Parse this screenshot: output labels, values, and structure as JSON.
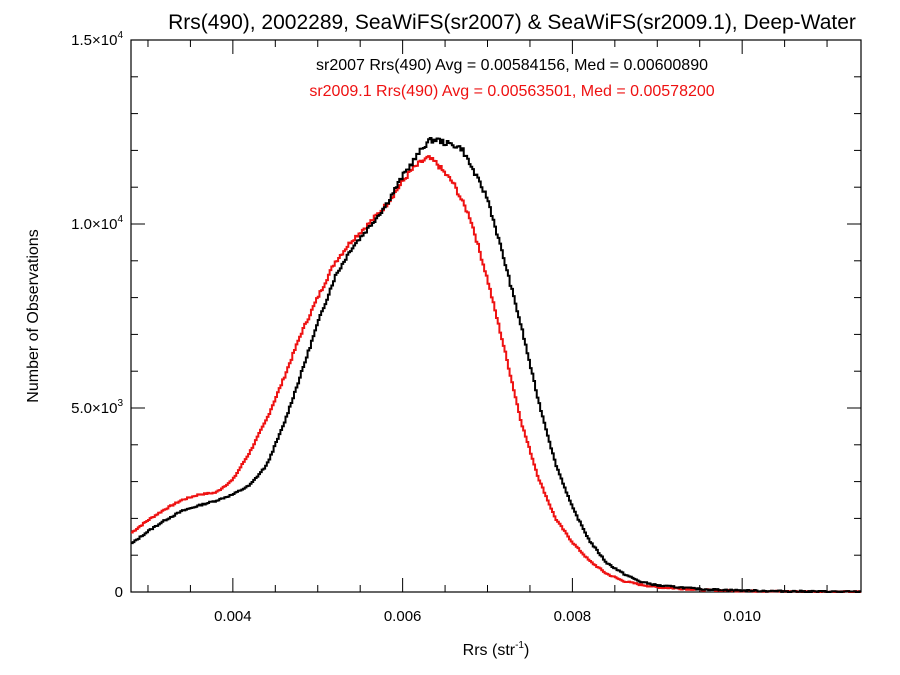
{
  "chart_data": {
    "type": "line",
    "title": "Rrs(490), 2002289, SeaWiFS(sr2007) & SeaWiFS(sr2009.1), Deep-Water",
    "xlabel": "Rrs (str",
    "xlabel_sup": "-1",
    "xlabel_tail": ")",
    "ylabel": "Number of Observations",
    "xlim": [
      0.0028,
      0.0114
    ],
    "ylim": [
      0,
      15000
    ],
    "x_ticks": [
      {
        "value": 0.004,
        "label": "0.004"
      },
      {
        "value": 0.006,
        "label": "0.006"
      },
      {
        "value": 0.008,
        "label": "0.008"
      },
      {
        "value": 0.01,
        "label": "0.010"
      }
    ],
    "y_ticks": [
      {
        "value": 0,
        "mantissa": "0",
        "exp": ""
      },
      {
        "value": 5000,
        "mantissa": "5.0×10",
        "exp": "3"
      },
      {
        "value": 10000,
        "mantissa": "1.0×10",
        "exp": "4"
      },
      {
        "value": 15000,
        "mantissa": "1.5×10",
        "exp": "4"
      }
    ],
    "annotations": [
      {
        "text": "sr2007 Rrs(490) Avg = 0.00584156, Med = 0.00600890",
        "color": "#000000"
      },
      {
        "text": "sr2009.1 Rrs(490) Avg = 0.00563501, Med = 0.00578200",
        "color": "#ee1111"
      }
    ],
    "series": [
      {
        "color": "#000000",
        "x": [
          0.0028,
          0.003,
          0.0032,
          0.0034,
          0.0036,
          0.0038,
          0.004,
          0.0042,
          0.0044,
          0.0046,
          0.0048,
          0.005,
          0.0052,
          0.0054,
          0.0056,
          0.0058,
          0.006,
          0.0062,
          0.0063,
          0.0064,
          0.0065,
          0.0066,
          0.0067,
          0.0068,
          0.007,
          0.0072,
          0.0074,
          0.0076,
          0.0078,
          0.008,
          0.0082,
          0.0084,
          0.0086,
          0.0088,
          0.009,
          0.0095,
          0.01,
          0.0105,
          0.011,
          0.0114
        ],
        "y": [
          1300,
          1650,
          1950,
          2200,
          2350,
          2480,
          2650,
          2900,
          3450,
          4550,
          5900,
          7300,
          8550,
          9350,
          9900,
          10500,
          11300,
          11950,
          12250,
          12300,
          12200,
          12150,
          12050,
          11600,
          10700,
          9000,
          7200,
          5200,
          3500,
          2300,
          1400,
          800,
          500,
          280,
          180,
          80,
          40,
          20,
          10,
          5
        ]
      },
      {
        "color": "#ee1111",
        "x": [
          0.0028,
          0.003,
          0.0032,
          0.0034,
          0.0036,
          0.0038,
          0.004,
          0.0042,
          0.0044,
          0.0046,
          0.0048,
          0.005,
          0.0052,
          0.0054,
          0.0056,
          0.0058,
          0.006,
          0.0061,
          0.0062,
          0.0063,
          0.0064,
          0.0066,
          0.0068,
          0.007,
          0.0072,
          0.0074,
          0.0076,
          0.0078,
          0.008,
          0.0082,
          0.0084,
          0.0086,
          0.0088,
          0.009,
          0.0095,
          0.01,
          0.0105,
          0.011,
          0.0114
        ],
        "y": [
          1600,
          1950,
          2250,
          2500,
          2650,
          2700,
          3050,
          3800,
          4700,
          5800,
          7000,
          8000,
          8950,
          9550,
          10000,
          10500,
          11150,
          11450,
          11650,
          11800,
          11650,
          11100,
          10150,
          8500,
          6600,
          4600,
          3100,
          2000,
          1350,
          850,
          500,
          300,
          200,
          130,
          60,
          30,
          15,
          8,
          4
        ]
      }
    ]
  }
}
